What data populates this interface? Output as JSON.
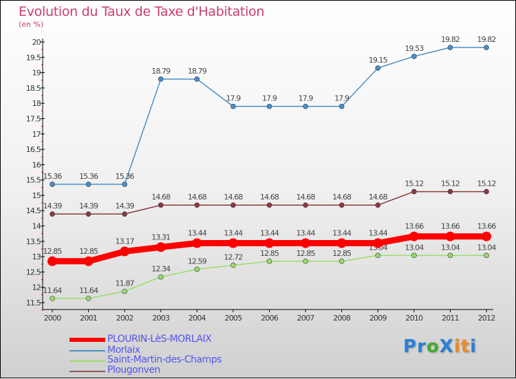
{
  "chart_data": {
    "type": "line",
    "title": "Evolution du Taux de Taxe d'Habitation",
    "subtitle": "(en %)",
    "x": [
      "2000",
      "2001",
      "2002",
      "2003",
      "2004",
      "2005",
      "2006",
      "2007",
      "2008",
      "2009",
      "2010",
      "2011",
      "2012"
    ],
    "ylim": [
      11.5,
      20
    ],
    "yticks": [
      "11.5",
      "12",
      "12.5",
      "13",
      "13.5",
      "14",
      "14.5",
      "15",
      "15.5",
      "16",
      "16.5",
      "17",
      "17.5",
      "18",
      "18.5",
      "19",
      "19.5",
      "20"
    ],
    "series": [
      {
        "name": "Morlaix",
        "color": "#4a90c8",
        "values": [
          15.36,
          15.36,
          15.36,
          18.79,
          18.79,
          17.9,
          17.9,
          17.9,
          17.9,
          19.15,
          19.53,
          19.82,
          19.82
        ]
      },
      {
        "name": "Plougonven",
        "color": "#8b3a3a",
        "values": [
          14.39,
          14.39,
          14.39,
          14.68,
          14.68,
          14.68,
          14.68,
          14.68,
          14.68,
          14.68,
          15.12,
          15.12,
          15.12
        ]
      },
      {
        "name": "Saint-Martin-des-Champs",
        "color": "#99dd66",
        "values": [
          11.64,
          11.64,
          11.87,
          12.34,
          12.59,
          12.72,
          12.85,
          12.85,
          12.85,
          13.04,
          13.04,
          13.04,
          13.04
        ]
      },
      {
        "name": "PLOURIN-LèS-MORLAIX",
        "color": "#ff0000",
        "values": [
          12.85,
          12.85,
          13.17,
          13.31,
          13.44,
          13.44,
          13.44,
          13.44,
          13.44,
          13.44,
          13.66,
          13.66,
          13.66
        ]
      }
    ],
    "legend": [
      "PLOURIN-LèS-MORLAIX",
      "Morlaix",
      "Saint-Martin-des-Champs",
      "Plougonven"
    ],
    "legend_position": "bottom-left"
  },
  "logo": "Proxiti"
}
